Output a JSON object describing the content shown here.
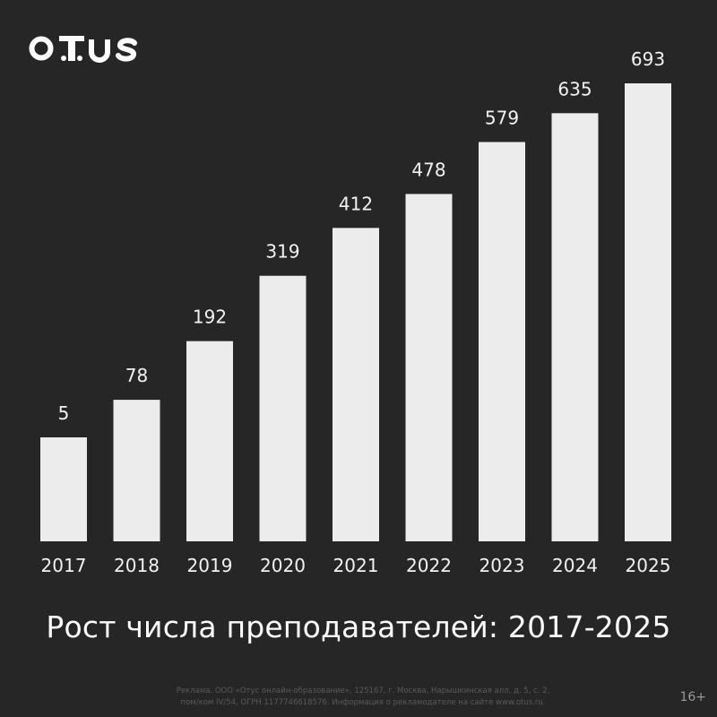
{
  "brand": {
    "logo_text": "OTUS"
  },
  "chart_data": {
    "type": "bar",
    "categories": [
      "2017",
      "2018",
      "2019",
      "2020",
      "2021",
      "2022",
      "2023",
      "2024",
      "2025"
    ],
    "values": [
      5,
      78,
      192,
      319,
      412,
      478,
      579,
      635,
      693
    ],
    "title": "Рост числа преподавателей: 2017-2025",
    "xlabel": "",
    "ylabel": "",
    "ylim": [
      0,
      693
    ],
    "grid": false,
    "legend": "none",
    "colors": {
      "background": "#262627",
      "bar": "#ececed",
      "text": "#f2f2f3"
    }
  },
  "footer": {
    "disclaimer_line1": "Реклама. ООО «Отус онлайн-образование», 125167, г. Москва, Нарышкинская алл, д. 5, с. 2,",
    "disclaimer_line2": "пом/ком IV/54, ОГРН 1177746618576. Информация о рекламодателе на сайте www.otus.ru.",
    "age_rating": "16+"
  }
}
